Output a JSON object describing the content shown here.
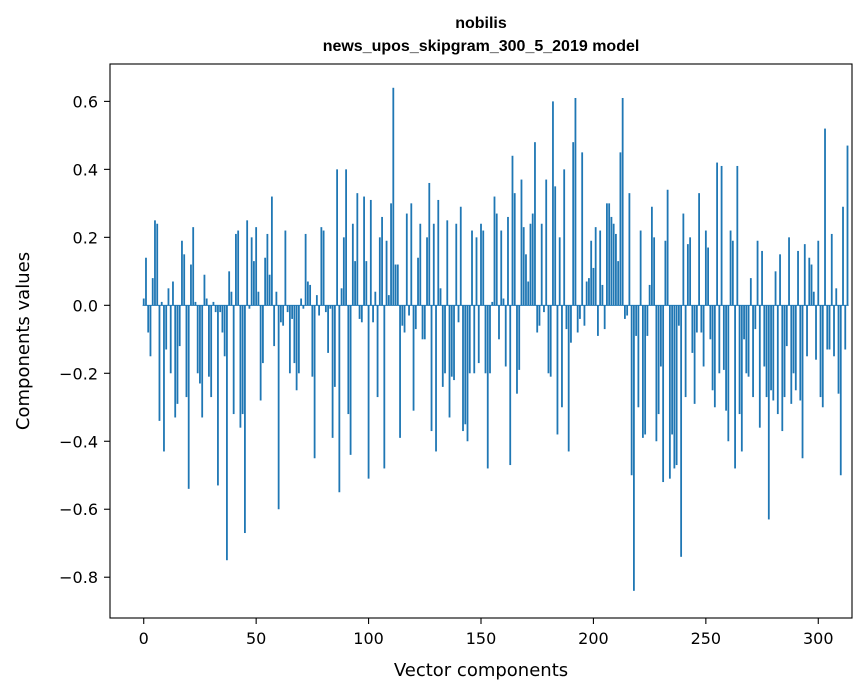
{
  "chart_data": {
    "type": "bar",
    "title": "nobilis",
    "subtitle": "news_upos_skipgram_300_5_2019 model",
    "xlabel": "Vector components",
    "ylabel": "Components values",
    "xlim": [
      -15,
      315
    ],
    "ylim": [
      -0.92,
      0.71
    ],
    "xticks": [
      0,
      50,
      100,
      150,
      200,
      250,
      300
    ],
    "yticks": [
      -0.8,
      -0.6,
      -0.4,
      -0.2,
      0.0,
      0.2,
      0.4,
      0.6
    ],
    "ytick_labels": [
      "−0.8",
      "−0.6",
      "−0.4",
      "−0.2",
      "0.0",
      "0.2",
      "0.4",
      "0.6"
    ],
    "grid": false,
    "color": "#1f77b4",
    "values": [
      0.02,
      0.14,
      -0.08,
      -0.15,
      0.08,
      0.25,
      0.24,
      -0.34,
      0.01,
      -0.43,
      -0.13,
      0.05,
      -0.2,
      0.07,
      -0.33,
      -0.29,
      -0.12,
      0.19,
      0.15,
      -0.27,
      -0.54,
      0.12,
      0.23,
      0.01,
      -0.2,
      -0.23,
      -0.33,
      0.09,
      0.02,
      -0.21,
      -0.27,
      0.01,
      -0.02,
      -0.53,
      -0.02,
      -0.08,
      -0.15,
      -0.75,
      0.1,
      0.04,
      -0.32,
      0.21,
      0.22,
      -0.36,
      -0.32,
      -0.67,
      0.25,
      -0.01,
      0.2,
      0.13,
      0.23,
      0.04,
      -0.28,
      -0.17,
      0.14,
      0.21,
      0.09,
      0.32,
      -0.12,
      0.04,
      -0.6,
      -0.05,
      -0.06,
      0.22,
      -0.02,
      -0.2,
      -0.04,
      -0.17,
      -0.25,
      -0.2,
      0.02,
      -0.01,
      0.21,
      0.07,
      0.06,
      -0.21,
      -0.45,
      0.03,
      -0.03,
      0.23,
      0.22,
      -0.02,
      -0.14,
      -0.01,
      -0.39,
      -0.24,
      0.4,
      -0.55,
      0.05,
      0.2,
      0.4,
      -0.32,
      -0.44,
      0.24,
      0.13,
      0.33,
      -0.04,
      -0.05,
      0.32,
      0.13,
      -0.51,
      0.31,
      -0.05,
      0.04,
      -0.27,
      0.2,
      0.26,
      -0.48,
      0.19,
      0.03,
      0.3,
      0.64,
      0.12,
      0.12,
      -0.39,
      -0.06,
      -0.08,
      0.27,
      -0.03,
      0.3,
      -0.31,
      -0.07,
      0.14,
      0.24,
      -0.1,
      -0.1,
      0.2,
      0.36,
      -0.37,
      0.24,
      -0.43,
      0.31,
      0.05,
      -0.24,
      -0.2,
      0.25,
      -0.33,
      -0.21,
      -0.22,
      0.24,
      -0.05,
      0.29,
      -0.37,
      -0.35,
      -0.4,
      -0.2,
      0.22,
      -0.2,
      0.2,
      -0.17,
      0.24,
      0.22,
      -0.2,
      -0.48,
      -0.2,
      0.01,
      0.32,
      0.27,
      -0.1,
      0.22,
      0.02,
      -0.18,
      0.26,
      -0.47,
      0.44,
      0.33,
      -0.26,
      -0.19,
      0.37,
      0.23,
      0.15,
      0.07,
      0.24,
      0.27,
      0.48,
      -0.08,
      -0.06,
      0.24,
      -0.02,
      0.37,
      -0.2,
      -0.21,
      0.6,
      0.35,
      -0.38,
      0.2,
      -0.3,
      0.4,
      -0.07,
      -0.43,
      -0.11,
      0.48,
      0.61,
      -0.08,
      -0.04,
      0.45,
      -0.06,
      0.07,
      0.08,
      0.19,
      0.11,
      0.23,
      -0.09,
      0.22,
      0.06,
      -0.07,
      0.3,
      0.3,
      0.26,
      0.24,
      0.21,
      0.13,
      0.45,
      0.61,
      -0.04,
      -0.03,
      0.33,
      -0.5,
      -0.84,
      -0.09,
      -0.3,
      0.22,
      -0.39,
      -0.38,
      -0.09,
      0.06,
      0.29,
      0.2,
      -0.4,
      -0.32,
      -0.18,
      -0.52,
      0.19,
      0.34,
      -0.51,
      -0.38,
      -0.48,
      -0.47,
      -0.06,
      -0.74,
      0.27,
      -0.27,
      0.18,
      0.2,
      -0.14,
      -0.29,
      -0.08,
      0.33,
      -0.08,
      -0.18,
      0.22,
      0.17,
      -0.1,
      -0.25,
      -0.3,
      0.42,
      -0.2,
      0.41,
      -0.19,
      -0.31,
      -0.4,
      0.22,
      0.19,
      -0.48,
      0.41,
      -0.32,
      -0.43,
      -0.1,
      -0.2,
      -0.21,
      0.08,
      -0.27,
      -0.07,
      0.19,
      -0.36,
      0.16,
      -0.18,
      -0.27,
      -0.63,
      -0.25,
      -0.28,
      0.1,
      -0.32,
      0.15,
      -0.37,
      -0.27,
      -0.12,
      0.2,
      -0.29,
      -0.2,
      -0.25,
      0.16,
      -0.28,
      -0.45,
      0.18,
      -0.15,
      0.14,
      0.12,
      0.04,
      -0.16,
      0.19,
      -0.27,
      -0.3,
      0.52,
      -0.13,
      -0.13,
      0.21,
      -0.15,
      0.05,
      -0.26,
      -0.5,
      0.29,
      -0.13,
      0.47
    ]
  }
}
